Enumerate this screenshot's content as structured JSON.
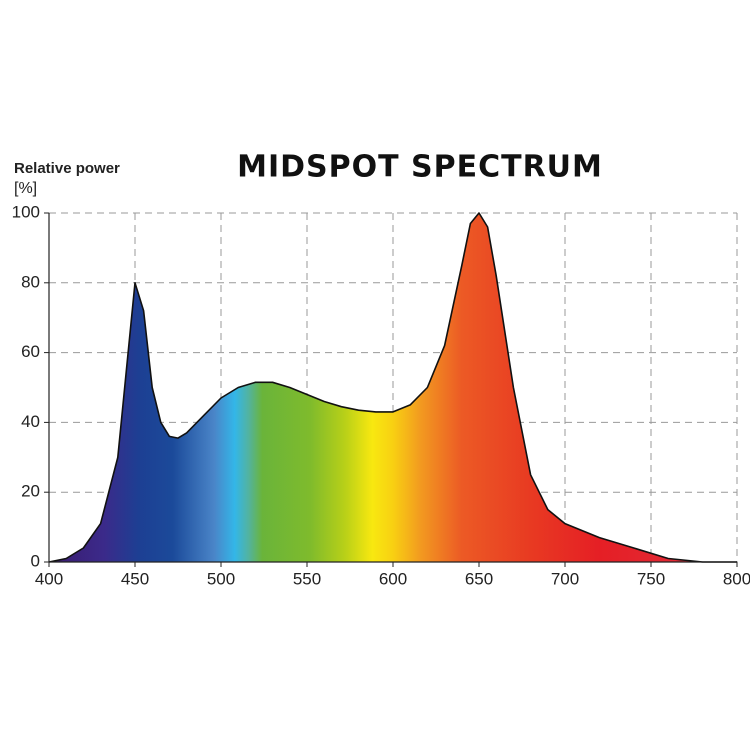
{
  "chart_data": {
    "type": "area",
    "title": "MIDSPOT SPECTRUM",
    "y_label": "Relative power",
    "y_unit": "[%]",
    "x": [
      400,
      410,
      420,
      430,
      440,
      445,
      450,
      455,
      460,
      465,
      470,
      475,
      480,
      490,
      500,
      510,
      520,
      530,
      540,
      550,
      560,
      570,
      580,
      590,
      600,
      610,
      620,
      630,
      640,
      645,
      650,
      655,
      660,
      670,
      680,
      690,
      700,
      720,
      740,
      760,
      780,
      800
    ],
    "values": [
      0,
      1,
      4,
      11,
      30,
      55,
      80,
      72,
      50,
      40,
      36,
      35.5,
      37,
      42,
      47,
      50,
      51.5,
      51.5,
      50,
      48,
      46,
      44.5,
      43.5,
      43,
      43,
      45,
      50,
      62,
      85,
      97,
      100,
      96,
      82,
      50,
      25,
      15,
      11,
      7,
      4,
      1,
      0,
      0
    ],
    "xlim": [
      400,
      800
    ],
    "xticks": [
      400,
      450,
      500,
      550,
      600,
      650,
      700,
      750,
      800
    ],
    "ylim": [
      0,
      100
    ],
    "yticks": [
      0,
      20,
      40,
      60,
      80,
      100
    ],
    "grid": true
  }
}
